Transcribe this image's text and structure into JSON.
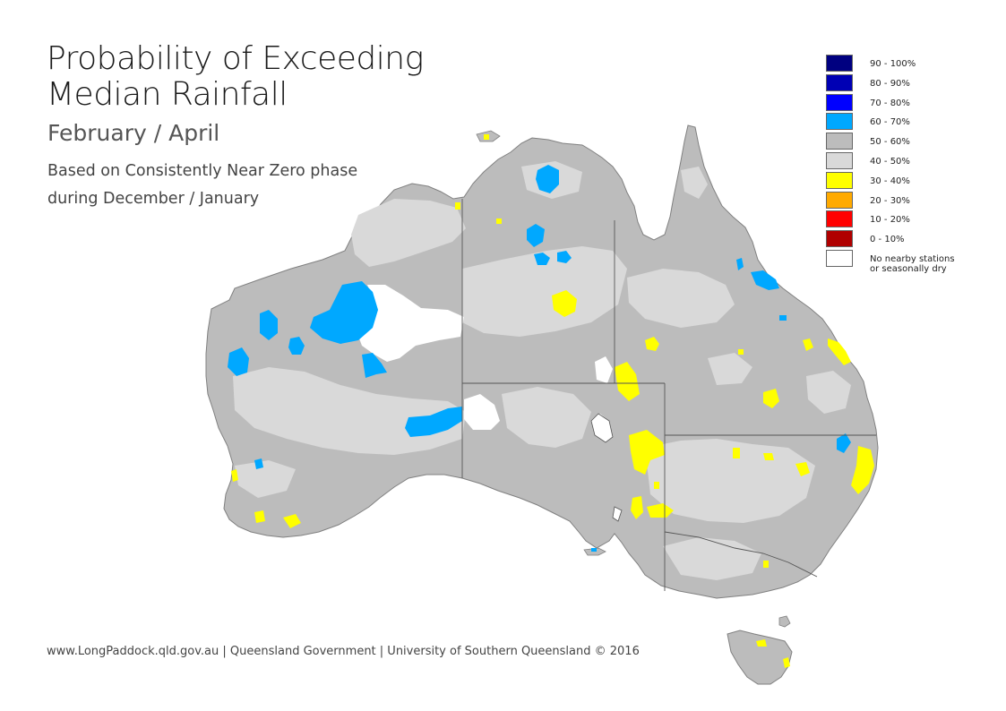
{
  "title": {
    "line1": "Probability of Exceeding",
    "line2": "Median Rainfall"
  },
  "period": "February / April",
  "basis": {
    "line1": "Based on Consistently Near Zero phase",
    "line2": "during December / January"
  },
  "legend": [
    {
      "label": "90 - 100%",
      "color": "#000080"
    },
    {
      "label": "80 - 90%",
      "color": "#0000b4"
    },
    {
      "label": "70 - 80%",
      "color": "#0000ff"
    },
    {
      "label": "60 - 70%",
      "color": "#00a8ff"
    },
    {
      "label": "50 - 60%",
      "color": "#bcbcbc"
    },
    {
      "label": "40 - 50%",
      "color": "#d9d9d9"
    },
    {
      "label": "30 - 40%",
      "color": "#ffff00"
    },
    {
      "label": "20 - 30%",
      "color": "#ffaa00"
    },
    {
      "label": "10 - 20%",
      "color": "#ff0000"
    },
    {
      "label": "0 - 10%",
      "color": "#b00000"
    },
    {
      "label_line1": "No nearby stations",
      "label_line2": "or seasonally dry",
      "color": "#ffffff"
    }
  ],
  "footer": "www.LongPaddock.qld.gov.au | Queensland Government | University of Southern Queensland © 2016"
}
